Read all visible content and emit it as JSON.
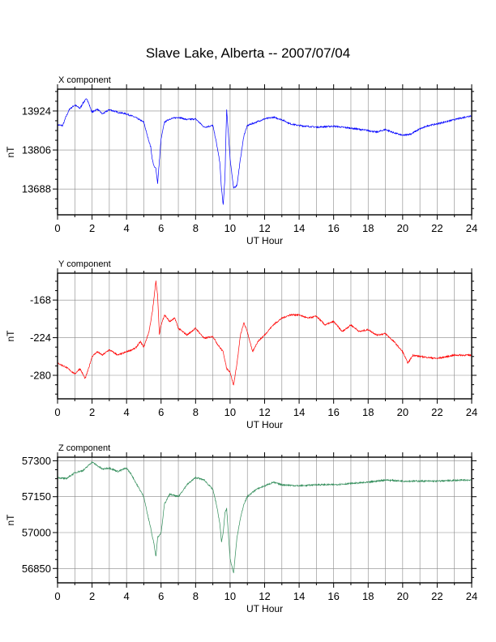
{
  "title": "Slave Lake, Alberta -- 2007/07/04",
  "colors": {
    "x": "#0000ff",
    "y": "#ff0000",
    "z": "#2e8b57",
    "grid": "#888888"
  },
  "chart_data": [
    {
      "type": "line",
      "title": "X component",
      "xlabel": "UT Hour",
      "ylabel": "nT",
      "xlim": [
        0,
        24
      ],
      "ylim": [
        13610,
        13990
      ],
      "xticks": [
        0,
        2,
        4,
        6,
        8,
        10,
        12,
        14,
        16,
        18,
        20,
        22,
        24
      ],
      "yticks": [
        13924,
        13806,
        13688
      ],
      "series": [
        {
          "color": "#0000ff",
          "x": [
            0,
            0.3,
            0.5,
            0.7,
            1.0,
            1.3,
            1.5,
            1.7,
            2.0,
            2.3,
            2.6,
            3.0,
            3.5,
            4.0,
            4.5,
            5.0,
            5.2,
            5.4,
            5.5,
            5.6,
            5.7,
            5.8,
            6.0,
            6.2,
            6.5,
            7.0,
            7.5,
            8.0,
            8.5,
            9.0,
            9.2,
            9.4,
            9.5,
            9.6,
            9.7,
            9.8,
            10.0,
            10.2,
            10.4,
            10.6,
            10.8,
            11.0,
            11.5,
            12.0,
            12.5,
            13.0,
            13.5,
            14.0,
            15.0,
            16.0,
            17.0,
            18.0,
            18.5,
            19.0,
            19.5,
            20.0,
            20.5,
            21.0,
            21.5,
            22.0,
            23.0,
            24.0
          ],
          "y": [
            13882,
            13880,
            13908,
            13930,
            13942,
            13932,
            13950,
            13962,
            13920,
            13930,
            13915,
            13928,
            13920,
            13915,
            13905,
            13890,
            13850,
            13815,
            13775,
            13755,
            13750,
            13705,
            13840,
            13890,
            13900,
            13905,
            13898,
            13900,
            13875,
            13880,
            13830,
            13770,
            13690,
            13640,
            13720,
            13930,
            13780,
            13690,
            13700,
            13780,
            13850,
            13880,
            13890,
            13900,
            13905,
            13898,
            13885,
            13880,
            13875,
            13878,
            13872,
            13865,
            13860,
            13868,
            13858,
            13850,
            13855,
            13870,
            13880,
            13885,
            13898,
            13910
          ]
        }
      ]
    },
    {
      "type": "line",
      "title": "Y component",
      "xlabel": "UT Hour",
      "ylabel": "nT",
      "xlim": [
        0,
        24
      ],
      "ylim": [
        -315,
        -128
      ],
      "xticks": [
        0,
        2,
        4,
        6,
        8,
        10,
        12,
        14,
        16,
        18,
        20,
        22,
        24
      ],
      "yticks": [
        -168,
        -224,
        -280
      ],
      "series": [
        {
          "color": "#ff0000",
          "x": [
            0,
            0.5,
            1.0,
            1.3,
            1.6,
            1.8,
            2.0,
            2.3,
            2.6,
            3.0,
            3.5,
            4.0,
            4.5,
            4.8,
            5.0,
            5.3,
            5.5,
            5.7,
            5.8,
            5.9,
            6.0,
            6.2,
            6.5,
            6.8,
            7.0,
            7.5,
            8.0,
            8.5,
            9.0,
            9.3,
            9.6,
            9.8,
            10.0,
            10.2,
            10.4,
            10.6,
            10.8,
            11.0,
            11.3,
            11.6,
            12.0,
            12.5,
            13.0,
            13.5,
            14.0,
            14.5,
            15.0,
            15.5,
            16.0,
            16.5,
            17.0,
            17.5,
            18.0,
            18.5,
            19.0,
            19.5,
            20.0,
            20.3,
            20.6,
            21.0,
            22.0,
            23.0,
            24.0
          ],
          "y": [
            -262,
            -268,
            -278,
            -270,
            -285,
            -270,
            -252,
            -245,
            -250,
            -242,
            -250,
            -245,
            -240,
            -230,
            -238,
            -215,
            -185,
            -140,
            -160,
            -220,
            -205,
            -190,
            -200,
            -195,
            -210,
            -220,
            -210,
            -225,
            -222,
            -235,
            -245,
            -270,
            -275,
            -295,
            -262,
            -220,
            -202,
            -215,
            -245,
            -230,
            -220,
            -205,
            -195,
            -190,
            -190,
            -195,
            -192,
            -205,
            -200,
            -215,
            -205,
            -215,
            -212,
            -220,
            -218,
            -230,
            -245,
            -262,
            -250,
            -252,
            -255,
            -250,
            -250
          ]
        }
      ]
    },
    {
      "type": "line",
      "title": "Z component",
      "xlabel": "UT Hour",
      "ylabel": "nT",
      "xlim": [
        0,
        24
      ],
      "ylim": [
        56790,
        57315
      ],
      "xticks": [
        0,
        2,
        4,
        6,
        8,
        10,
        12,
        14,
        16,
        18,
        20,
        22,
        24
      ],
      "yticks": [
        57300,
        57150,
        57000,
        56850
      ],
      "series": [
        {
          "color": "#2e8b57",
          "x": [
            0,
            0.5,
            1.0,
            1.5,
            2.0,
            2.3,
            2.6,
            3.0,
            3.5,
            4.0,
            4.3,
            4.6,
            5.0,
            5.2,
            5.4,
            5.5,
            5.6,
            5.7,
            5.8,
            6.0,
            6.2,
            6.5,
            7.0,
            7.5,
            8.0,
            8.5,
            9.0,
            9.2,
            9.4,
            9.5,
            9.6,
            9.7,
            9.8,
            10.0,
            10.2,
            10.4,
            10.6,
            10.8,
            11.0,
            11.5,
            12.0,
            12.5,
            13.0,
            14.0,
            15.0,
            16.0,
            17.0,
            18.0,
            19.0,
            20.0,
            21.0,
            22.0,
            23.0,
            24.0
          ],
          "y": [
            57230,
            57225,
            57250,
            57260,
            57295,
            57280,
            57265,
            57270,
            57255,
            57270,
            57240,
            57200,
            57150,
            57080,
            57020,
            56980,
            56950,
            56900,
            56980,
            57000,
            57120,
            57160,
            57150,
            57200,
            57230,
            57220,
            57180,
            57120,
            57040,
            56960,
            57000,
            57080,
            57100,
            56890,
            56830,
            56980,
            57060,
            57120,
            57150,
            57180,
            57195,
            57210,
            57200,
            57195,
            57200,
            57200,
            57205,
            57210,
            57220,
            57215,
            57215,
            57215,
            57218,
            57220
          ]
        }
      ]
    }
  ]
}
